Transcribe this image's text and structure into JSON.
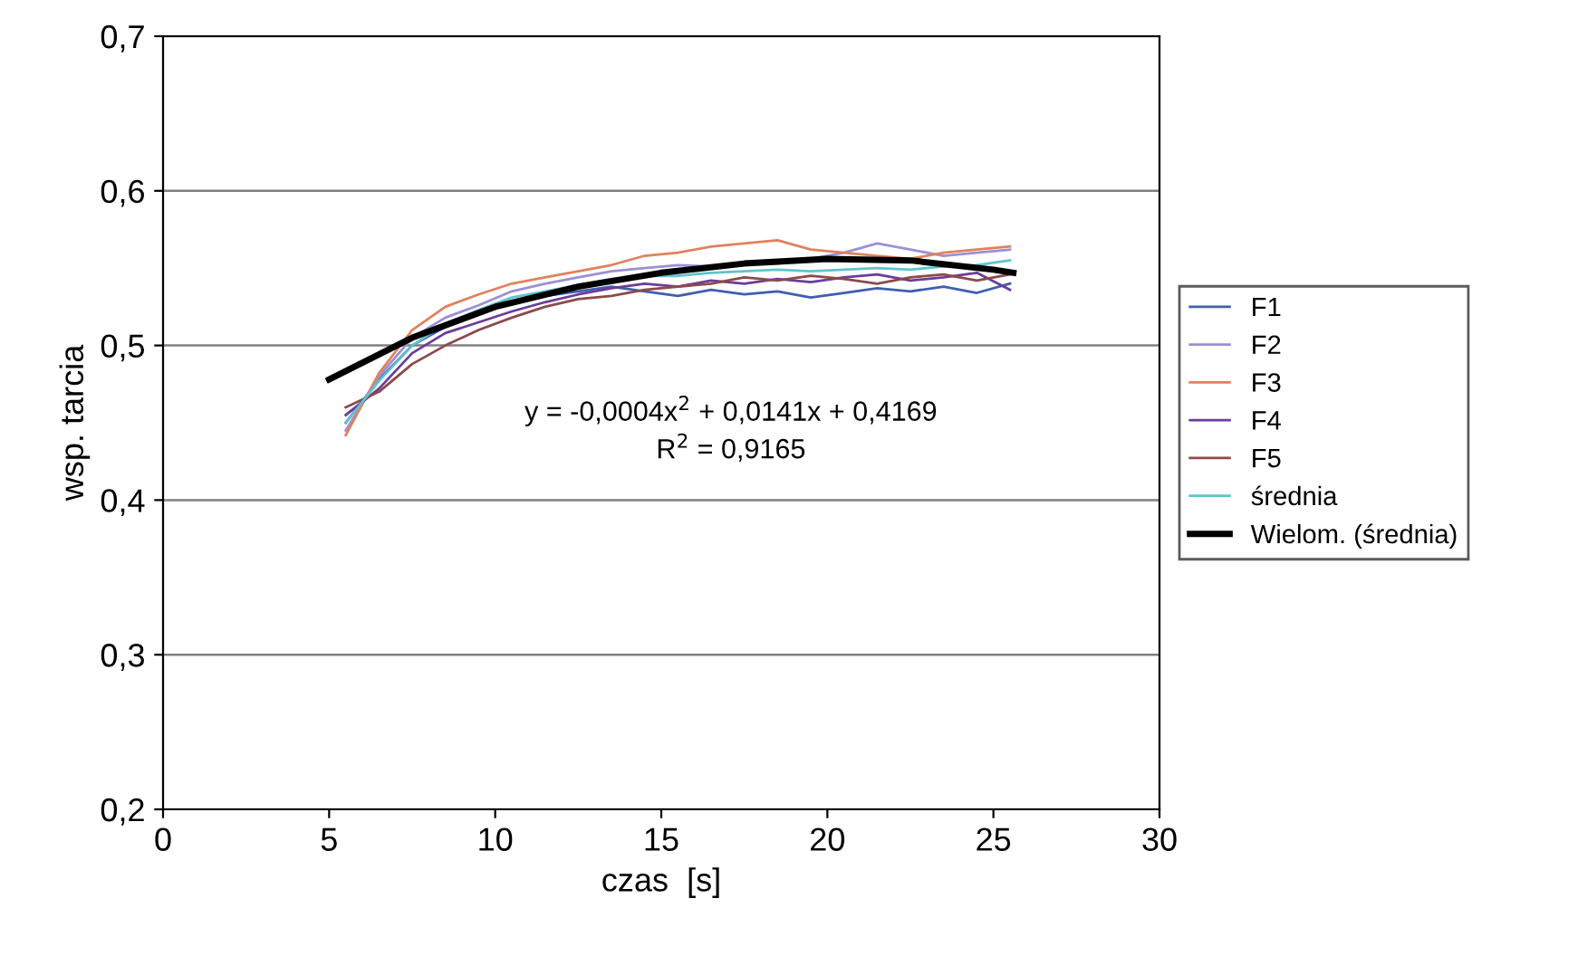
{
  "chart_data": {
    "type": "line",
    "xlabel": "czas  [s]",
    "ylabel": "wsp. tarcia",
    "xlim": [
      0,
      30
    ],
    "xticks": [
      0,
      5,
      10,
      15,
      20,
      25,
      30
    ],
    "ylim": [
      0.2,
      0.7
    ],
    "yticks": [
      {
        "value": 0.2,
        "label": "0,2"
      },
      {
        "value": 0.3,
        "label": "0,3"
      },
      {
        "value": 0.4,
        "label": "0,4"
      },
      {
        "value": 0.5,
        "label": "0,5"
      },
      {
        "value": 0.6,
        "label": "0,6"
      },
      {
        "value": 0.7,
        "label": "0,7"
      }
    ],
    "grid": "y",
    "legend": "right",
    "marker": "none",
    "line_style": "solid",
    "x": [
      5.5,
      6.5,
      7.5,
      8.5,
      9.5,
      10.5,
      11.5,
      12.5,
      13.5,
      14.5,
      15.5,
      16.5,
      17.5,
      18.5,
      19.5,
      20.5,
      21.5,
      22.5,
      23.5,
      24.5,
      25.5
    ],
    "series": [
      {
        "name": "F1",
        "color": "#3f5fb0",
        "values": [
          0.45,
          0.478,
          0.5,
          0.512,
          0.52,
          0.528,
          0.532,
          0.535,
          0.538,
          0.535,
          0.532,
          0.536,
          0.533,
          0.535,
          0.531,
          0.534,
          0.537,
          0.535,
          0.538,
          0.534,
          0.54
        ]
      },
      {
        "name": "F2",
        "color": "#9c90d4",
        "values": [
          0.445,
          0.48,
          0.505,
          0.518,
          0.526,
          0.535,
          0.54,
          0.544,
          0.548,
          0.55,
          0.552,
          0.551,
          0.554,
          0.553,
          0.556,
          0.56,
          0.566,
          0.562,
          0.558,
          0.56,
          0.562
        ]
      },
      {
        "name": "F3",
        "color": "#e0825e",
        "values": [
          0.442,
          0.482,
          0.51,
          0.525,
          0.533,
          0.54,
          0.544,
          0.548,
          0.552,
          0.558,
          0.56,
          0.564,
          0.566,
          0.568,
          0.562,
          0.56,
          0.558,
          0.556,
          0.56,
          0.562,
          0.564
        ]
      },
      {
        "name": "F4",
        "color": "#6a3d9a",
        "values": [
          0.455,
          0.472,
          0.495,
          0.508,
          0.515,
          0.522,
          0.528,
          0.533,
          0.537,
          0.54,
          0.538,
          0.542,
          0.54,
          0.543,
          0.541,
          0.544,
          0.546,
          0.542,
          0.544,
          0.547,
          0.536
        ]
      },
      {
        "name": "F5",
        "color": "#8c4a4a",
        "values": [
          0.46,
          0.47,
          0.488,
          0.5,
          0.51,
          0.518,
          0.525,
          0.53,
          0.532,
          0.536,
          0.538,
          0.54,
          0.544,
          0.542,
          0.545,
          0.543,
          0.54,
          0.544,
          0.546,
          0.542,
          0.546
        ]
      },
      {
        "name": "średnia",
        "color": "#5fc4cc",
        "values": [
          0.45,
          0.477,
          0.5,
          0.514,
          0.523,
          0.531,
          0.535,
          0.539,
          0.543,
          0.545,
          0.545,
          0.547,
          0.548,
          0.549,
          0.548,
          0.549,
          0.55,
          0.549,
          0.551,
          0.552,
          0.555
        ]
      },
      {
        "name": "Wielom. (średnia)",
        "color": "#000000",
        "x": [
          5,
          7.5,
          10,
          12.5,
          15,
          17.5,
          20,
          22.5,
          25,
          25.6
        ],
        "values": [
          0.478,
          0.505,
          0.525,
          0.538,
          0.547,
          0.553,
          0.556,
          0.555,
          0.549,
          0.547
        ]
      }
    ],
    "annotations": [
      "y = -0,0004x$^{2}$ + 0,0141x + 0,4169",
      "R$^{2}$ = 0,9165"
    ]
  }
}
